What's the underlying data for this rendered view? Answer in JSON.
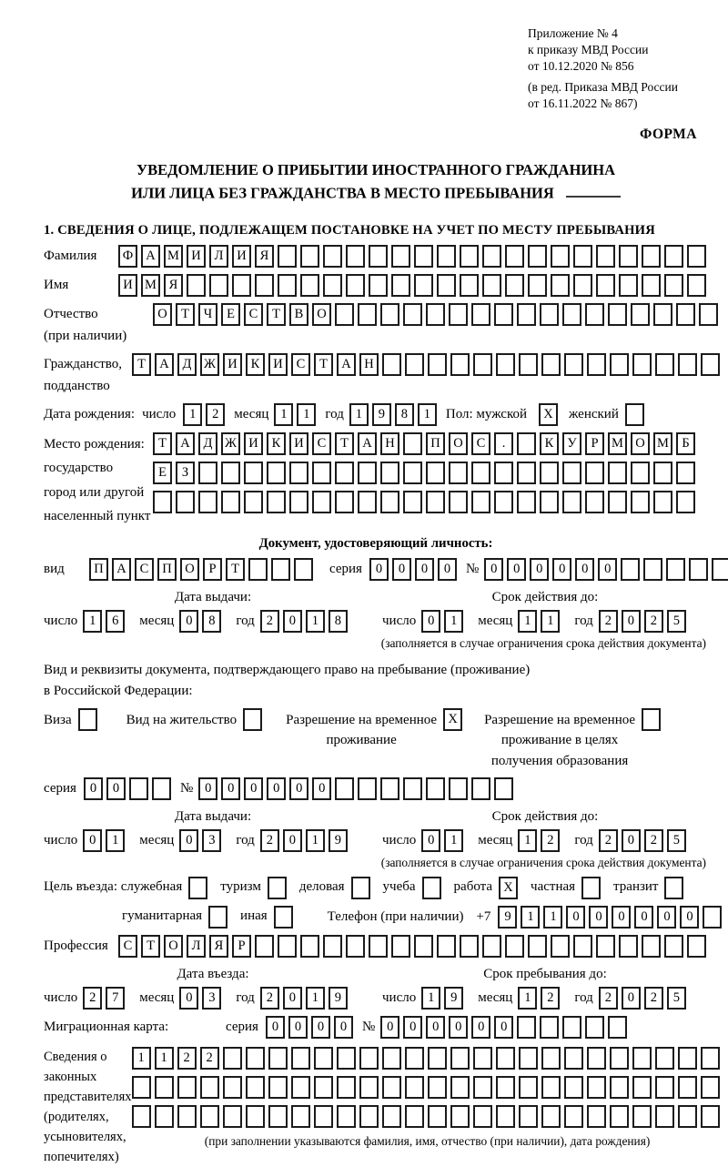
{
  "header": {
    "lines": [
      "Приложение № 4",
      "к приказу МВД России",
      "от 10.12.2020 № 856"
    ],
    "revision_lines": [
      "(в ред. Приказа МВД России",
      "от 16.11.2022 № 867)"
    ],
    "form_label": "ФОРМА"
  },
  "title": {
    "line1": "УВЕДОМЛЕНИЕ О ПРИБЫТИИ ИНОСТРАННОГО ГРАЖДАНИНА",
    "line2": "ИЛИ ЛИЦА БЕЗ ГРАЖДАНСТВА В МЕСТО ПРЕБЫВАНИЯ"
  },
  "section1_heading": "1. СВЕДЕНИЯ О ЛИЦЕ, ПОДЛЕЖАЩЕМ ПОСТАНОВКЕ НА УЧЕТ ПО МЕСТУ ПРЕБЫВАНИЯ",
  "surname": {
    "label": "Фамилия",
    "cells": [
      "Ф",
      "А",
      "М",
      "И",
      "Л",
      "И",
      "Я",
      "",
      "",
      "",
      "",
      "",
      "",
      "",
      "",
      "",
      "",
      "",
      "",
      "",
      "",
      "",
      "",
      "",
      "",
      ""
    ]
  },
  "name": {
    "label": "Имя",
    "cells": [
      "И",
      "М",
      "Я",
      "",
      "",
      "",
      "",
      "",
      "",
      "",
      "",
      "",
      "",
      "",
      "",
      "",
      "",
      "",
      "",
      "",
      "",
      "",
      "",
      "",
      "",
      ""
    ]
  },
  "patronymic": {
    "label_lines": [
      "Отчество",
      "(при наличии)"
    ],
    "cells": [
      "О",
      "Т",
      "Ч",
      "Е",
      "С",
      "Т",
      "В",
      "О",
      "",
      "",
      "",
      "",
      "",
      "",
      "",
      "",
      "",
      "",
      "",
      "",
      "",
      "",
      "",
      "",
      ""
    ]
  },
  "citizenship": {
    "label_lines": [
      "Гражданство,",
      "подданство"
    ],
    "cells": [
      "Т",
      "А",
      "Д",
      "Ж",
      "И",
      "К",
      "И",
      "С",
      "Т",
      "А",
      "Н",
      "",
      "",
      "",
      "",
      "",
      "",
      "",
      "",
      "",
      "",
      "",
      "",
      "",
      "",
      ""
    ]
  },
  "birth_date": {
    "label": "Дата рождения:",
    "day_label": "число",
    "day": [
      "1",
      "2"
    ],
    "month_label": "месяц",
    "month": [
      "1",
      "1"
    ],
    "year_label": "год",
    "year": [
      "1",
      "9",
      "8",
      "1"
    ],
    "sex_label": "Пол: мужской",
    "male_mark": "X",
    "female_label": "женский",
    "female_mark": ""
  },
  "birth_place": {
    "label_lines": [
      "Место рождения:",
      "государство",
      "город или другой",
      "населенный пункт"
    ],
    "row1": [
      "Т",
      "А",
      "Д",
      "Ж",
      "И",
      "К",
      "И",
      "С",
      "Т",
      "А",
      "Н",
      "",
      "П",
      "О",
      "С",
      ".",
      "",
      "К",
      "У",
      "Р",
      "М",
      "О",
      "М",
      "Б"
    ],
    "row2": [
      "Е",
      "З",
      "",
      "",
      "",
      "",
      "",
      "",
      "",
      "",
      "",
      "",
      "",
      "",
      "",
      "",
      "",
      "",
      "",
      "",
      "",
      "",
      "",
      ""
    ],
    "row3": [
      "",
      "",
      "",
      "",
      "",
      "",
      "",
      "",
      "",
      "",
      "",
      "",
      "",
      "",
      "",
      "",
      "",
      "",
      "",
      "",
      "",
      "",
      "",
      ""
    ]
  },
  "identity_doc": {
    "heading": "Документ, удостоверяющий личность:",
    "type_label": "вид",
    "type_cells": [
      "П",
      "А",
      "С",
      "П",
      "О",
      "Р",
      "Т",
      "",
      "",
      ""
    ],
    "series_label": "серия",
    "series_cells": [
      "0",
      "0",
      "0",
      "0"
    ],
    "number_label": "№",
    "number_cells": [
      "0",
      "0",
      "0",
      "0",
      "0",
      "0",
      "",
      "",
      "",
      "",
      ""
    ],
    "issue_caption": "Дата выдачи:",
    "issue_day_label": "число",
    "issue_day": [
      "1",
      "6"
    ],
    "issue_month_label": "месяц",
    "issue_month": [
      "0",
      "8"
    ],
    "issue_year_label": "год",
    "issue_year": [
      "2",
      "0",
      "1",
      "8"
    ],
    "valid_caption": "Срок действия до:",
    "valid_day_label": "число",
    "valid_day": [
      "0",
      "1"
    ],
    "valid_month_label": "месяц",
    "valid_month": [
      "1",
      "1"
    ],
    "valid_year_label": "год",
    "valid_year": [
      "2",
      "0",
      "2",
      "5"
    ],
    "valid_note": "(заполняется в случае ограничения срока действия документа)"
  },
  "residence_doc": {
    "intro_line1": "Вид и реквизиты документа, подтверждающего право на пребывание (проживание)",
    "intro_line2": "в Российской Федерации:",
    "options": [
      {
        "label_lines": [
          "Виза"
        ],
        "mark": ""
      },
      {
        "label_lines": [
          "Вид на жительство"
        ],
        "mark": ""
      },
      {
        "label_lines": [
          "Разрешение на временное",
          "проживание"
        ],
        "mark": "X"
      },
      {
        "label_lines": [
          "Разрешение на временное",
          "проживание в целях",
          "получения образования"
        ],
        "mark": ""
      }
    ],
    "series_label": "серия",
    "series_cells": [
      "0",
      "0",
      "",
      ""
    ],
    "number_label": "№",
    "number_cells": [
      "0",
      "0",
      "0",
      "0",
      "0",
      "0",
      "",
      "",
      "",
      "",
      "",
      "",
      "",
      ""
    ],
    "issue_caption": "Дата выдачи:",
    "issue_day_label": "число",
    "issue_day": [
      "0",
      "1"
    ],
    "issue_month_label": "месяц",
    "issue_month": [
      "0",
      "3"
    ],
    "issue_year_label": "год",
    "issue_year": [
      "2",
      "0",
      "1",
      "9"
    ],
    "valid_caption": "Срок действия до:",
    "valid_day_label": "число",
    "valid_day": [
      "0",
      "1"
    ],
    "valid_month_label": "месяц",
    "valid_month": [
      "1",
      "2"
    ],
    "valid_year_label": "год",
    "valid_year": [
      "2",
      "0",
      "2",
      "5"
    ],
    "valid_note": "(заполняется в случае ограничения срока действия документа)"
  },
  "visit_purpose": {
    "label": "Цель въезда:",
    "options_line1": [
      {
        "label": "служебная",
        "mark": ""
      },
      {
        "label": "туризм",
        "mark": ""
      },
      {
        "label": "деловая",
        "mark": ""
      },
      {
        "label": "учеба",
        "mark": ""
      },
      {
        "label": "работа",
        "mark": "X"
      },
      {
        "label": "частная",
        "mark": ""
      },
      {
        "label": "транзит",
        "mark": ""
      }
    ],
    "options_line2": [
      {
        "label": "гуманитарная",
        "mark": ""
      },
      {
        "label": "иная",
        "mark": ""
      }
    ],
    "phone_label": "Телефон (при наличии)",
    "phone_prefix": "+7",
    "phone_cells": [
      "9",
      "1",
      "1",
      "0",
      "0",
      "0",
      "0",
      "0",
      "0",
      ""
    ]
  },
  "profession": {
    "label": "Профессия",
    "cells": [
      "С",
      "Т",
      "О",
      "Л",
      "Я",
      "Р",
      "",
      "",
      "",
      "",
      "",
      "",
      "",
      "",
      "",
      "",
      "",
      "",
      "",
      "",
      "",
      "",
      "",
      "",
      "",
      ""
    ]
  },
  "entry": {
    "entry_caption": "Дата въезда:",
    "entry_day_label": "число",
    "entry_day": [
      "2",
      "7"
    ],
    "entry_month_label": "месяц",
    "entry_month": [
      "0",
      "3"
    ],
    "entry_year_label": "год",
    "entry_year": [
      "2",
      "0",
      "1",
      "9"
    ],
    "stay_caption": "Срок пребывания до:",
    "stay_day_label": "число",
    "stay_day": [
      "1",
      "9"
    ],
    "stay_month_label": "месяц",
    "stay_month": [
      "1",
      "2"
    ],
    "stay_year_label": "год",
    "stay_year": [
      "2",
      "0",
      "2",
      "5"
    ]
  },
  "migration_card": {
    "label": "Миграционная карта:",
    "series_label": "серия",
    "series_cells": [
      "0",
      "0",
      "0",
      "0"
    ],
    "number_label": "№",
    "number_cells": [
      "0",
      "0",
      "0",
      "0",
      "0",
      "0",
      "",
      "",
      "",
      "",
      ""
    ]
  },
  "representatives": {
    "label_lines": [
      "Сведения о",
      "законных",
      "представителях",
      "(родителях,",
      "усыновителях,",
      "попечителях)"
    ],
    "row1": [
      "1",
      "1",
      "2",
      "2",
      "",
      "",
      "",
      "",
      "",
      "",
      "",
      "",
      "",
      "",
      "",
      "",
      "",
      "",
      "",
      "",
      "",
      "",
      "",
      "",
      "",
      ""
    ],
    "row2": [
      "",
      "",
      "",
      "",
      "",
      "",
      "",
      "",
      "",
      "",
      "",
      "",
      "",
      "",
      "",
      "",
      "",
      "",
      "",
      "",
      "",
      "",
      "",
      "",
      "",
      ""
    ],
    "row3": [
      "",
      "",
      "",
      "",
      "",
      "",
      "",
      "",
      "",
      "",
      "",
      "",
      "",
      "",
      "",
      "",
      "",
      "",
      "",
      "",
      "",
      "",
      "",
      "",
      "",
      ""
    ],
    "note": "(при заполнении указываются фамилия, имя, отчество (при наличии), дата рождения)"
  }
}
